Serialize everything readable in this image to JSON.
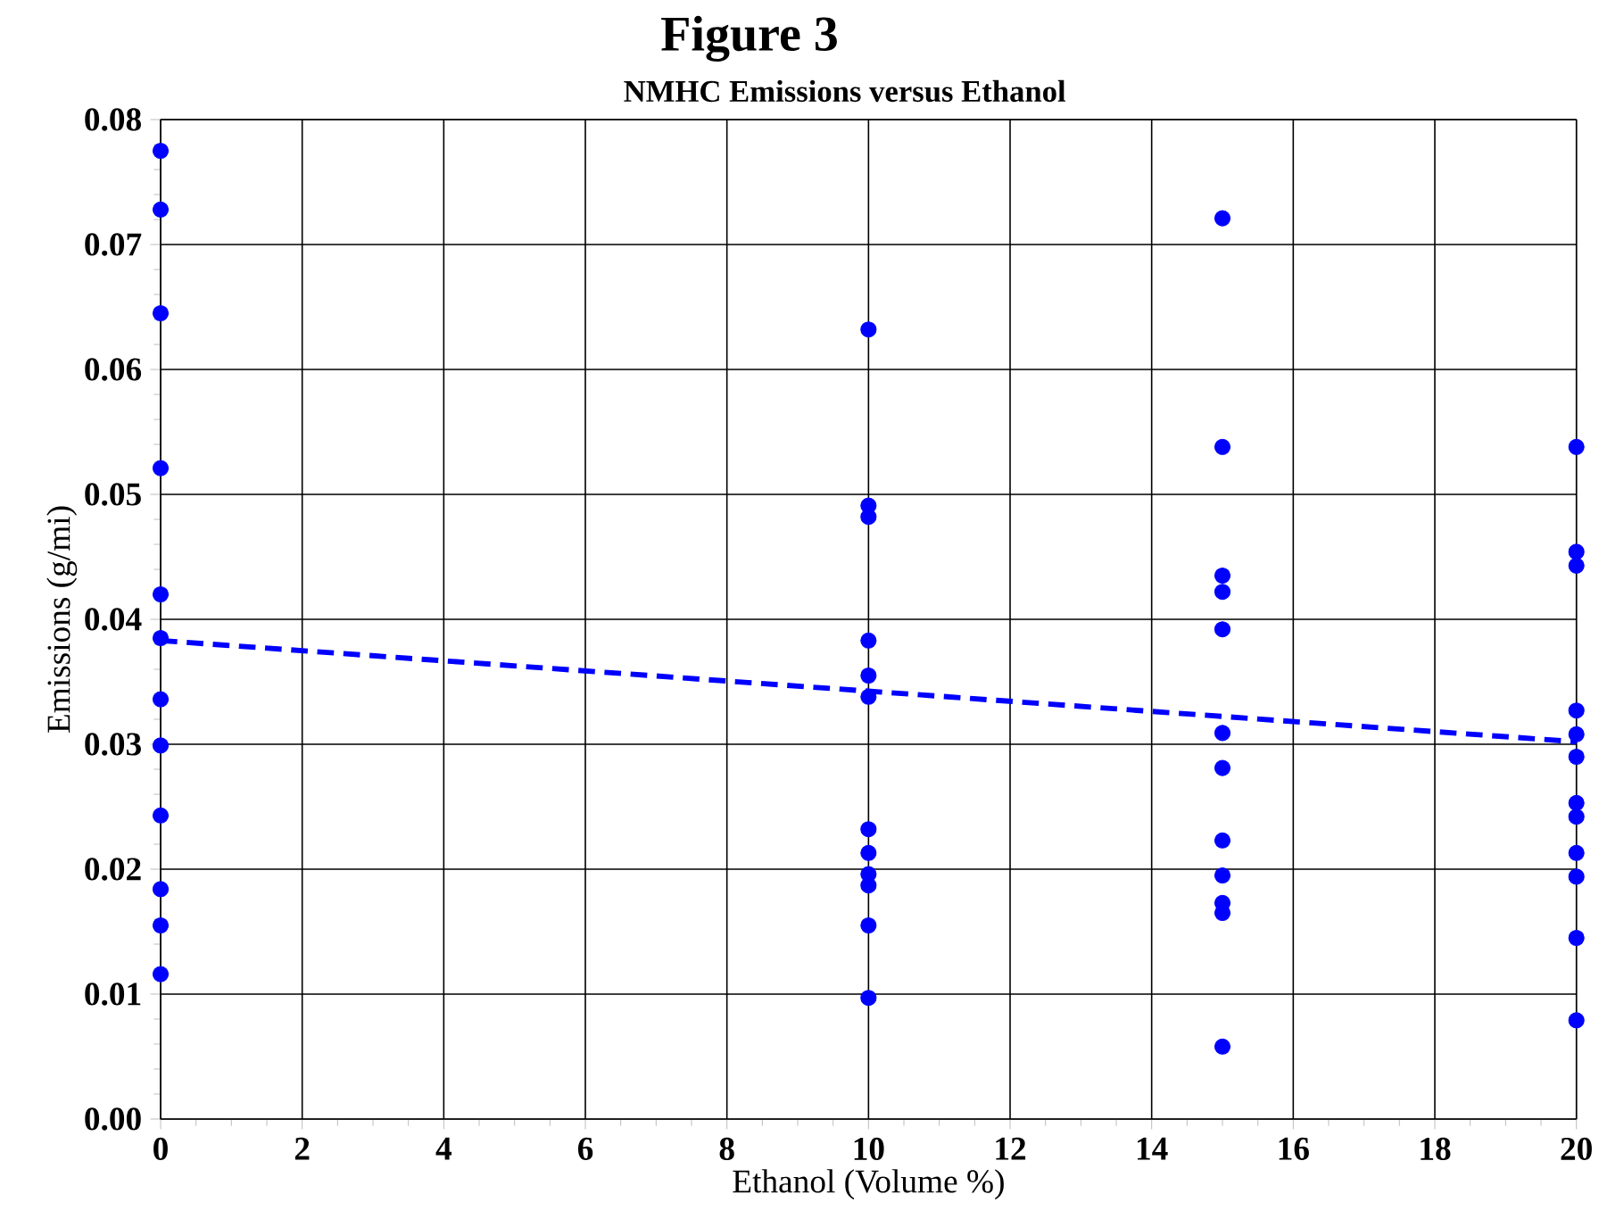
{
  "chart_data": {
    "type": "scatter",
    "title": "Figure 3",
    "subtitle": "NMHC Emissions versus Ethanol",
    "xlabel": "Ethanol (Volume %)",
    "ylabel": "Emissions (g/mi)",
    "xlim": [
      0,
      20
    ],
    "ylim": [
      0,
      0.08
    ],
    "xticks": [
      0,
      2,
      4,
      6,
      8,
      10,
      12,
      14,
      16,
      18,
      20
    ],
    "yticks": [
      {
        "value": 0,
        "label": "0.00"
      },
      {
        "value": 0.01,
        "label": "0.01"
      },
      {
        "value": 0.02,
        "label": "0.02"
      },
      {
        "value": 0.03,
        "label": "0.03"
      },
      {
        "value": 0.04,
        "label": "0.04"
      },
      {
        "value": 0.05,
        "label": "0.05"
      },
      {
        "value": 0.06,
        "label": "0.06"
      },
      {
        "value": 0.07,
        "label": "0.07"
      },
      {
        "value": 0.08,
        "label": "0.08"
      }
    ],
    "grid": true,
    "series": [
      {
        "type": "scatter",
        "marker": "circle",
        "color": "#0000ff",
        "x": [
          0,
          0,
          0,
          0,
          0,
          0,
          0,
          0,
          0,
          0,
          0,
          0,
          10,
          10,
          10,
          10,
          10,
          10,
          10,
          10,
          10,
          10,
          10,
          10,
          15,
          15,
          15,
          15,
          15,
          15,
          15,
          15,
          15,
          15,
          15,
          15,
          20,
          20,
          20,
          20,
          20,
          20,
          20,
          20,
          20,
          20,
          20,
          20
        ],
        "values": [
          0.0775,
          0.0728,
          0.0645,
          0.0521,
          0.042,
          0.0385,
          0.0336,
          0.0299,
          0.0243,
          0.0184,
          0.0155,
          0.0116,
          0.0632,
          0.0491,
          0.0482,
          0.0383,
          0.0355,
          0.0338,
          0.0232,
          0.0213,
          0.0196,
          0.0187,
          0.0155,
          0.0097,
          0.0721,
          0.0538,
          0.0435,
          0.0422,
          0.0392,
          0.0309,
          0.0281,
          0.0223,
          0.0195,
          0.0173,
          0.0165,
          0.0058,
          0.0538,
          0.0454,
          0.0443,
          0.0327,
          0.0308,
          0.029,
          0.0253,
          0.0242,
          0.0213,
          0.0194,
          0.0145,
          0.0079
        ]
      },
      {
        "type": "line",
        "color": "#0000ff",
        "line_style": "dashed",
        "marker": "none",
        "x": [
          0,
          20
        ],
        "values": [
          0.0383,
          0.0302
        ]
      }
    ]
  }
}
